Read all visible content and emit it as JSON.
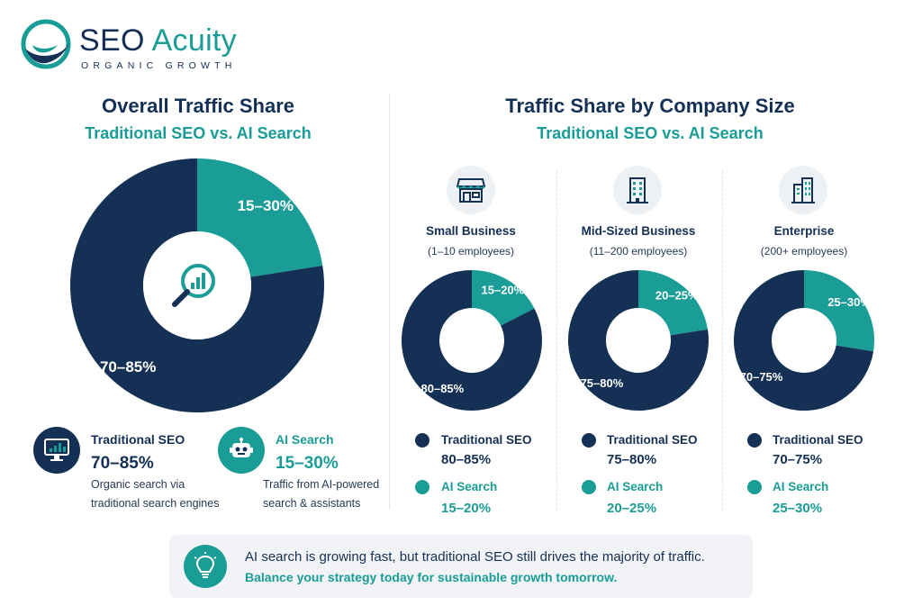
{
  "brand": {
    "name_part1": "SEO ",
    "name_part2": "Acuity",
    "tagline": "ORGANIC GROWTH"
  },
  "colors": {
    "traditional": "#143055",
    "ai": "#1a9d96",
    "text": "#143055"
  },
  "overall": {
    "title": "Overall Traffic Share",
    "subtitle": "Traditional SEO vs. AI Search",
    "center_icon": "magnifier-chart-icon",
    "legend": [
      {
        "name": "Traditional SEO",
        "value": "70–85%",
        "desc_line1": "Organic search via",
        "desc_line2": "traditional search engines",
        "icon": "monitor-chart-icon"
      },
      {
        "name": "AI Search",
        "value": "15–30%",
        "desc_line1": "Traffic from AI-powered",
        "desc_line2": "search & assistants",
        "icon": "robot-icon"
      }
    ]
  },
  "by_size": {
    "title": "Traffic Share by Company Size",
    "subtitle": "Traditional SEO vs. AI Search",
    "columns": [
      {
        "name": "Small Business",
        "employees": "(1–10 employees)",
        "icon": "storefront-icon",
        "trad_label": "Traditional SEO",
        "trad_value": "80–85%",
        "ai_label": "AI Search",
        "ai_value": "15–20%"
      },
      {
        "name": "Mid-Sized Business",
        "employees": "(11–200 employees)",
        "icon": "office-building-icon",
        "trad_label": "Traditional SEO",
        "trad_value": "75–80%",
        "ai_label": "AI Search",
        "ai_value": "20–25%"
      },
      {
        "name": "Enterprise",
        "employees": "(200+ employees)",
        "icon": "tower-building-icon",
        "trad_label": "Traditional SEO",
        "trad_value": "70–75%",
        "ai_label": "AI Search",
        "ai_value": "25–30%"
      }
    ]
  },
  "chart_data": [
    {
      "type": "pie",
      "title": "Overall Traffic Share",
      "subtitle": "Traditional SEO vs. AI Search",
      "categories": [
        "Traditional SEO",
        "AI Search"
      ],
      "values": [
        77.5,
        22.5
      ],
      "labels": [
        "70–85%",
        "15–30%"
      ]
    },
    {
      "type": "pie",
      "title": "Small Business",
      "subtitle": "(1–10 employees)",
      "categories": [
        "Traditional SEO",
        "AI Search"
      ],
      "values": [
        82.5,
        17.5
      ],
      "labels": [
        "80–85%",
        "15–20%"
      ]
    },
    {
      "type": "pie",
      "title": "Mid-Sized Business",
      "subtitle": "(11–200 employees)",
      "categories": [
        "Traditional SEO",
        "AI Search"
      ],
      "values": [
        77.5,
        22.5
      ],
      "labels": [
        "75–80%",
        "20–25%"
      ]
    },
    {
      "type": "pie",
      "title": "Enterprise",
      "subtitle": "(200+ employees)",
      "categories": [
        "Traditional SEO",
        "AI Search"
      ],
      "values": [
        72.5,
        27.5
      ],
      "labels": [
        "70–75%",
        "25–30%"
      ]
    }
  ],
  "banner": {
    "icon": "lightbulb-icon",
    "line1": "AI search is growing fast, but traditional SEO still drives the majority of traffic.",
    "line2": "Balance your strategy today for sustainable growth tomorrow."
  }
}
